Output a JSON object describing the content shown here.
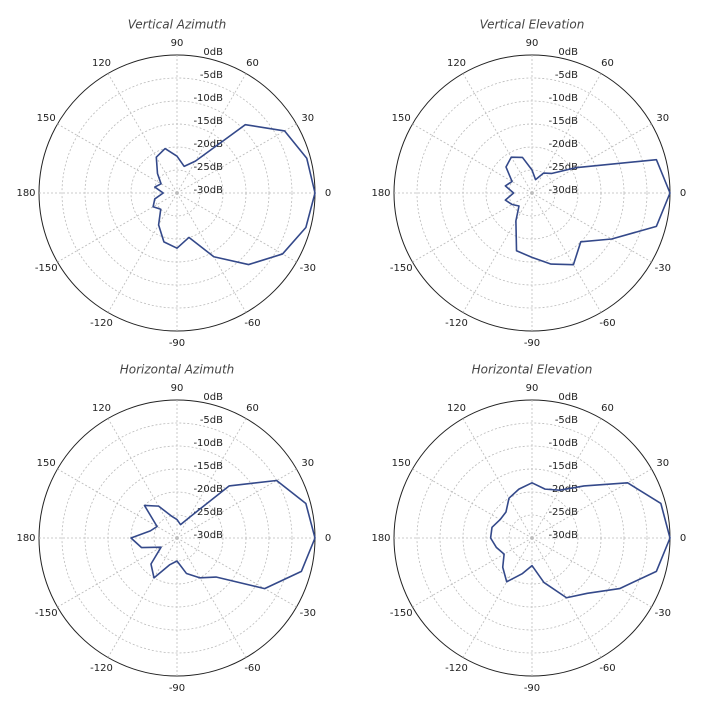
{
  "chart_data": [
    {
      "type": "polar",
      "title": "Vertical Azimuth",
      "color": "#34498a",
      "grid": true,
      "theta": [
        0,
        15,
        30,
        45,
        60,
        75,
        90,
        105,
        120,
        135,
        150,
        165,
        180,
        -165,
        -150,
        -135,
        -120,
        -105,
        -90,
        -75,
        -60,
        -45,
        -30,
        -15
      ],
      "values": [
        0,
        -0.8,
        -3,
        -9,
        -22,
        -24,
        -22,
        -20,
        -21,
        -24,
        -26,
        -25,
        -27,
        -25,
        -24,
        -25,
        -22,
        -19,
        -18,
        -20,
        -14,
        -8,
        -3.5,
        -1
      ],
      "rlim": [
        -30,
        0
      ],
      "rticks": [
        {
          "value": 0,
          "label": "0dB"
        },
        {
          "value": -5,
          "label": "-5dB"
        },
        {
          "value": -10,
          "label": "-10dB"
        },
        {
          "value": -15,
          "label": "-15dB"
        },
        {
          "value": -20,
          "label": "-20dB"
        },
        {
          "value": -25,
          "label": "-25dB"
        },
        {
          "value": -30,
          "label": "-30dB"
        }
      ],
      "thetaticks": [
        0,
        30,
        60,
        90,
        120,
        150,
        180,
        -150,
        -120,
        -90,
        -60,
        -30
      ]
    },
    {
      "type": "polar",
      "title": "Vertical Elevation",
      "color": "#34498a",
      "grid": true,
      "theta": [
        0,
        15,
        30,
        45,
        60,
        75,
        90,
        105,
        120,
        135,
        150,
        165,
        180,
        -165,
        -150,
        -135,
        -120,
        -105,
        -90,
        -75,
        -60,
        -45,
        -30,
        -15
      ],
      "values": [
        0,
        -2,
        -19,
        -24,
        -25,
        -27,
        -25,
        -22,
        -21,
        -22,
        -25,
        -24,
        -26,
        -24,
        -25,
        -26,
        -23,
        -17,
        -16,
        -14,
        -12,
        -15,
        -10,
        -2
      ],
      "rlim": [
        -30,
        0
      ],
      "rticks": [
        {
          "value": 0,
          "label": "0dB"
        },
        {
          "value": -5,
          "label": "-5dB"
        },
        {
          "value": -10,
          "label": "-10dB"
        },
        {
          "value": -15,
          "label": "-15dB"
        },
        {
          "value": -20,
          "label": "-20dB"
        },
        {
          "value": -25,
          "label": "-25dB"
        },
        {
          "value": -30,
          "label": "-30dB"
        }
      ],
      "thetaticks": [
        0,
        30,
        60,
        90,
        120,
        150,
        180,
        -150,
        -120,
        -90,
        -60,
        -30
      ]
    },
    {
      "type": "polar",
      "title": "Horizontal Azimuth",
      "color": "#34498a",
      "grid": true,
      "theta": [
        0,
        15,
        30,
        45,
        60,
        75,
        90,
        105,
        120,
        135,
        150,
        165,
        180,
        -165,
        -150,
        -135,
        -120,
        -105,
        -90,
        -75,
        -60,
        -45,
        -30,
        -15
      ],
      "values": [
        0,
        -1,
        -5,
        -14,
        -25,
        -27,
        -26,
        -25,
        -22,
        -20,
        -25,
        -24,
        -20,
        -22,
        -26,
        -22,
        -20,
        -24,
        -25,
        -22,
        -20,
        -18,
        -8,
        -2
      ],
      "rlim": [
        -30,
        0
      ],
      "rticks": [
        {
          "value": 0,
          "label": "0dB"
        },
        {
          "value": -5,
          "label": "-5dB"
        },
        {
          "value": -10,
          "label": "-10dB"
        },
        {
          "value": -15,
          "label": "-15dB"
        },
        {
          "value": -20,
          "label": "-20dB"
        },
        {
          "value": -25,
          "label": "-25dB"
        },
        {
          "value": -30,
          "label": "-30dB"
        }
      ],
      "thetaticks": [
        0,
        30,
        60,
        90,
        120,
        150,
        180,
        -150,
        -120,
        -90,
        -60,
        -30
      ]
    },
    {
      "type": "polar",
      "title": "Horizontal Elevation",
      "color": "#34498a",
      "grid": true,
      "theta": [
        0,
        15,
        30,
        45,
        60,
        75,
        90,
        105,
        120,
        135,
        150,
        165,
        180,
        -165,
        -150,
        -135,
        -120,
        -105,
        -90,
        -75,
        -60,
        -45,
        -30,
        -15
      ],
      "values": [
        0,
        -1,
        -6,
        -14,
        -18,
        -19,
        -18,
        -19,
        -20,
        -22,
        -22,
        -21,
        -21,
        -22,
        -23,
        -21,
        -19,
        -22,
        -24,
        -20,
        -15,
        -13,
        -8,
        -2
      ],
      "rlim": [
        -30,
        0
      ],
      "rticks": [
        {
          "value": 0,
          "label": "0dB"
        },
        {
          "value": -5,
          "label": "-5dB"
        },
        {
          "value": -10,
          "label": "-10dB"
        },
        {
          "value": -15,
          "label": "-15dB"
        },
        {
          "value": -20,
          "label": "-20dB"
        },
        {
          "value": -25,
          "label": "-25dB"
        },
        {
          "value": -30,
          "label": "-30dB"
        }
      ],
      "thetaticks": [
        0,
        30,
        60,
        90,
        120,
        150,
        180,
        -150,
        -120,
        -90,
        -60,
        -30
      ]
    }
  ]
}
